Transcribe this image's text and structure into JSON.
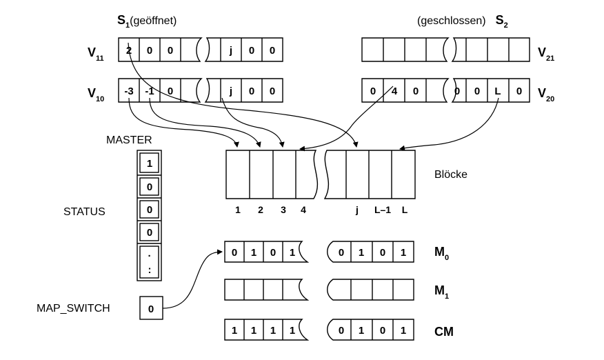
{
  "snapshots": {
    "s1": {
      "letter": "S",
      "index": "1",
      "state": "(geöffnet)"
    },
    "s2": {
      "letter": "S",
      "index": "2",
      "state": "(geschlossen)"
    }
  },
  "vectors": {
    "v11": {
      "letter": "V",
      "index": "11",
      "left": [
        "2",
        "0",
        "0"
      ],
      "right": [
        "j",
        "0",
        "0"
      ]
    },
    "v10": {
      "letter": "V",
      "index": "10",
      "left": [
        "-3",
        "-1",
        "0"
      ],
      "right": [
        "j",
        "0",
        "0"
      ]
    },
    "v21": {
      "letter": "V",
      "index": "21",
      "left": [
        "",
        "",
        "",
        ""
      ],
      "right": [
        "",
        "",
        "",
        ""
      ]
    },
    "v20": {
      "letter": "V",
      "index": "20",
      "left": [
        "0",
        "4",
        "0"
      ],
      "right": [
        "0",
        "0",
        "L",
        "0"
      ]
    }
  },
  "blocks": {
    "label": "Blöcke",
    "numbers_left": [
      "1",
      "2",
      "3",
      "4"
    ],
    "numbers_right": [
      "j",
      "L–1",
      "L"
    ]
  },
  "master": {
    "title": "MASTER",
    "cells": [
      "1",
      "0",
      "0",
      "0",
      "·",
      ":"
    ]
  },
  "status_label": "STATUS",
  "map_switch": {
    "label": "MAP_SWITCH",
    "value": "0"
  },
  "maps": {
    "m0": {
      "letter": "M",
      "index": "0",
      "left": [
        "0",
        "1",
        "0",
        "1"
      ],
      "right": [
        "0",
        "1",
        "0",
        "1"
      ]
    },
    "m1": {
      "letter": "M",
      "index": "1",
      "left": [
        "",
        "",
        "",
        ""
      ],
      "right": [
        "",
        "",
        "",
        ""
      ]
    },
    "cm": {
      "letter": "CM",
      "left": [
        "1",
        "1",
        "1",
        "1"
      ],
      "right": [
        "0",
        "1",
        "0",
        "1"
      ]
    }
  }
}
